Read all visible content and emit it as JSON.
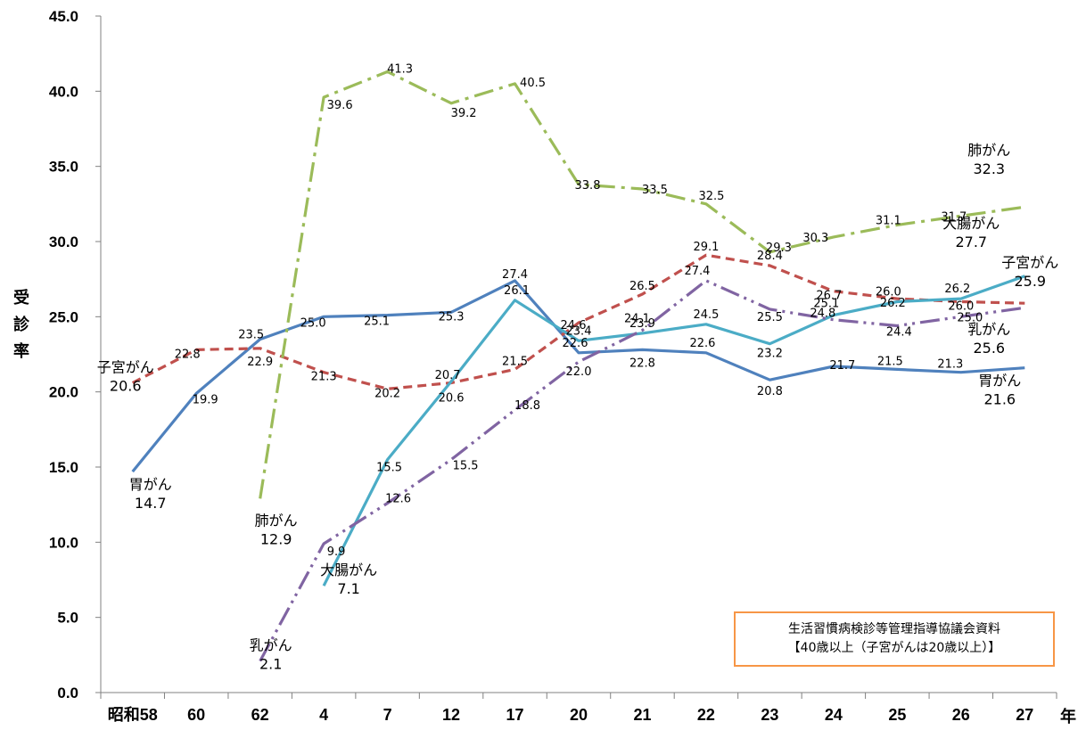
{
  "chart_data": {
    "type": "line",
    "ylabel": "受診率",
    "xunit": "年",
    "ylim": [
      0,
      45
    ],
    "yticks": [
      "0.0",
      "5.0",
      "10.0",
      "15.0",
      "20.0",
      "25.0",
      "30.0",
      "35.0",
      "40.0",
      "45.0"
    ],
    "categories": [
      "昭和58",
      "60",
      "62",
      "4",
      "7",
      "12",
      "17",
      "20",
      "21",
      "22",
      "23",
      "24",
      "25",
      "26",
      "27"
    ],
    "grid": false,
    "series": [
      {
        "name": "胃がん",
        "color": "#4f81bd",
        "dash": "solid",
        "values": [
          14.7,
          19.9,
          23.5,
          25.0,
          25.1,
          25.3,
          27.4,
          22.6,
          22.8,
          22.6,
          20.8,
          21.7,
          21.5,
          21.3,
          21.6
        ]
      },
      {
        "name": "子宮がん",
        "color": "#c0504d",
        "dash": "dash",
        "values": [
          20.6,
          22.8,
          22.9,
          21.3,
          20.2,
          20.6,
          21.5,
          24.6,
          26.5,
          29.1,
          28.4,
          26.7,
          26.2,
          26.0,
          25.9
        ]
      },
      {
        "name": "肺がん",
        "color": "#9bbb59",
        "dash": "dashdot",
        "values": [
          null,
          null,
          12.9,
          39.6,
          41.3,
          39.2,
          40.5,
          33.8,
          33.5,
          32.5,
          29.3,
          30.3,
          31.1,
          31.7,
          32.3
        ]
      },
      {
        "name": "大腸がん",
        "color": "#4bacc6",
        "dash": "solid",
        "values": [
          null,
          null,
          null,
          7.1,
          15.5,
          20.7,
          26.1,
          23.4,
          23.9,
          24.5,
          23.2,
          25.1,
          26.0,
          26.2,
          27.7
        ]
      },
      {
        "name": "乳がん",
        "color": "#8064a2",
        "dash": "dashdotdot",
        "values": [
          null,
          null,
          2.1,
          9.9,
          12.6,
          15.5,
          18.8,
          22.0,
          24.1,
          27.4,
          25.5,
          24.8,
          24.4,
          25.0,
          25.6
        ]
      }
    ]
  },
  "source_box": {
    "line1": "生活習慣病検診等管理指導協議会資料",
    "line2": "【40歳以上（子宮がんは20歳以上）】"
  }
}
